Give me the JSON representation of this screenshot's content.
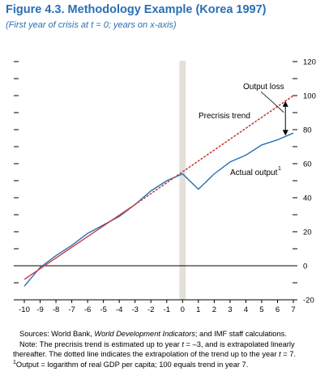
{
  "figure": {
    "title": "Figure 4.3.  Methodology Example (Korea 1997)",
    "subtitle": "(First year of crisis at t = 0; years on x-axis)"
  },
  "chart_data": {
    "type": "line",
    "title": "Figure 4.3.  Methodology Example (Korea 1997)",
    "subtitle": "(First year of crisis at t = 0; years on x-axis)",
    "xlabel": "",
    "ylabel": "",
    "xlim": [
      -10,
      7
    ],
    "ylim": [
      -20,
      120
    ],
    "x_ticks": [
      -10,
      -9,
      -8,
      -7,
      -6,
      -5,
      -4,
      -3,
      -2,
      -1,
      0,
      1,
      2,
      3,
      4,
      5,
      6,
      7
    ],
    "y_ticks": [
      -20,
      0,
      20,
      40,
      60,
      80,
      100,
      120
    ],
    "grid": false,
    "crisis_band": {
      "from": -0.2,
      "to": 0.2,
      "color": "#e3e0da"
    },
    "series": [
      {
        "name": "Actual output",
        "color": "#2a6fb4",
        "style": "solid",
        "x": [
          -10,
          -9,
          -8,
          -7,
          -6,
          -5,
          -4,
          -3,
          -2,
          -1,
          0,
          1,
          2,
          3,
          4,
          5,
          6,
          7
        ],
        "values": [
          -12,
          -1,
          6,
          12,
          19,
          24,
          29,
          36,
          44,
          50,
          54,
          45,
          54,
          61,
          65,
          71,
          74,
          78
        ]
      },
      {
        "name": "Precrisis trend",
        "color": "#c83a3a",
        "style": "solid",
        "x": [
          -10,
          -3
        ],
        "values": [
          -8,
          36
        ]
      },
      {
        "name": "Precrisis trend extrapolation",
        "color": "#c83a3a",
        "style": "dotted",
        "x": [
          -3,
          7
        ],
        "values": [
          36,
          100
        ]
      }
    ],
    "annotations": {
      "output_loss": "Output loss",
      "precrisis_trend": "Precrisis trend",
      "actual_output": "Actual output",
      "actual_output_footnote": "1"
    }
  },
  "notes": {
    "sources_prefix": "Sources: World Bank, ",
    "sources_italic": "World Development Indicators",
    "sources_suffix": "; and IMF staff calculations.",
    "note1_a": "Note: The precrisis trend is estimated up to year ",
    "note1_t": "t",
    "note1_b": " = –3, and is extrapolated linearly",
    "note2_a": "thereafter. The dotted line indicates the extrapolation of the trend up to the year ",
    "note2_t": "t",
    "note2_b": " = 7.",
    "footnote_mark": "1",
    "footnote_text": "Output = logarithm of real GDP per capita; 100 equals trend in year 7."
  }
}
